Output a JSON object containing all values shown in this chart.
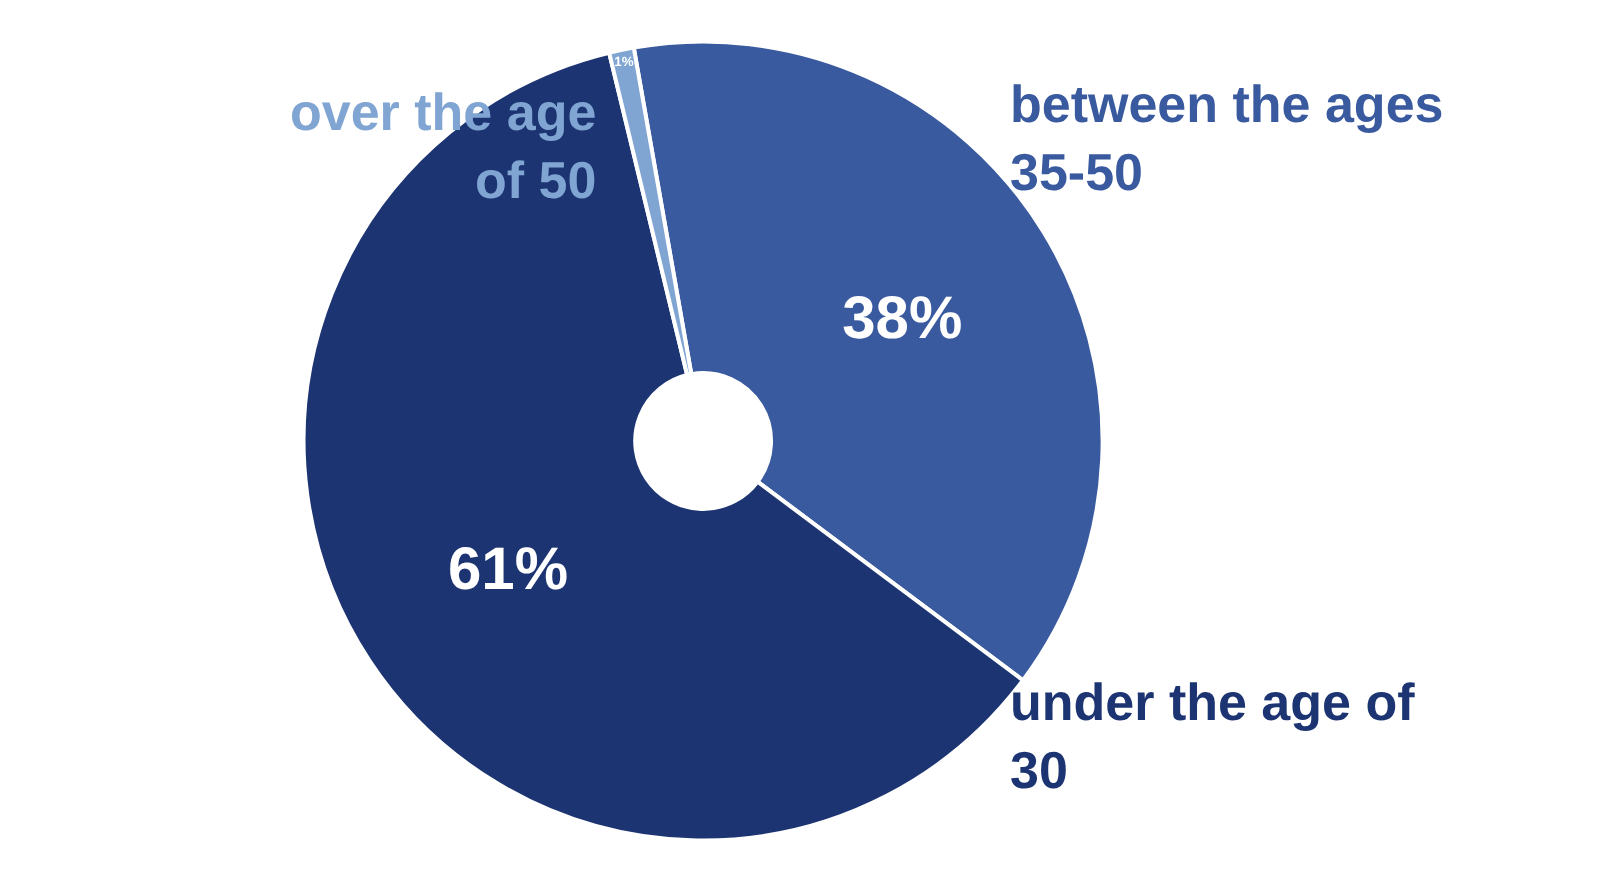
{
  "chart_data": {
    "type": "donut",
    "categories": [
      "between the ages 35-50",
      "under the age of 30",
      "over the age of 50"
    ],
    "values": [
      38,
      61,
      1
    ],
    "colors": [
      "#3a5a9f",
      "#1c3472",
      "#80a5d2"
    ],
    "value_labels": [
      "38%",
      "61%",
      "1%"
    ],
    "legend": false
  }
}
